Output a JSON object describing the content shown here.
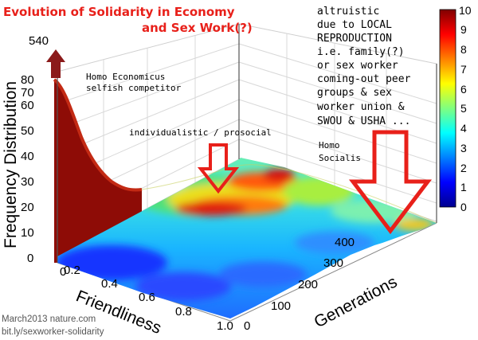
{
  "chart_data": {
    "type": "surface-3d",
    "title_line1": "Evolution of Solidarity in Economy",
    "title_line2": "and Sex Work(?)",
    "xlabel": "Friendliness",
    "ylabel": "Generations",
    "zlabel": "Frequency Distribution",
    "x_ticks": [
      "0.2",
      "0.4",
      "0.6",
      "0.8",
      "1.0"
    ],
    "x_zero": "0",
    "y_ticks": [
      "0",
      "100",
      "200",
      "300",
      "400"
    ],
    "z_ticks": [
      "0",
      "10",
      "20",
      "30",
      "40",
      "50",
      "60",
      "70",
      "80"
    ],
    "z_peak_label": "540",
    "colorbar_ticks": [
      "0",
      "1",
      "2",
      "3",
      "4",
      "5",
      "6",
      "7",
      "8",
      "9",
      "10"
    ],
    "colorbar_range": [
      0,
      10
    ],
    "colormap": "jet",
    "annotations": {
      "left_line1": "Homo Economicus",
      "left_line2": "selfish competitor",
      "middle": "individualistic / prosocial",
      "right_lines": [
        "altruistic",
        "due to LOCAL",
        "REPRODUCTION",
        "i.e. family(?)",
        "or sex worker",
        "coming-out peer",
        "groups & sex",
        "worker union &",
        "SWOU & USHA ..."
      ],
      "right_label_line1": "Homo",
      "right_label_line2": "Socialis"
    },
    "credits": {
      "line1": "March2013 nature.com",
      "line2": "bit.ly/sexworker-solidarity"
    },
    "colors": {
      "title": "#e8201a",
      "arrow_dark": "#8b1a1a",
      "arrow_red": "#e8201a"
    },
    "grid": true
  }
}
